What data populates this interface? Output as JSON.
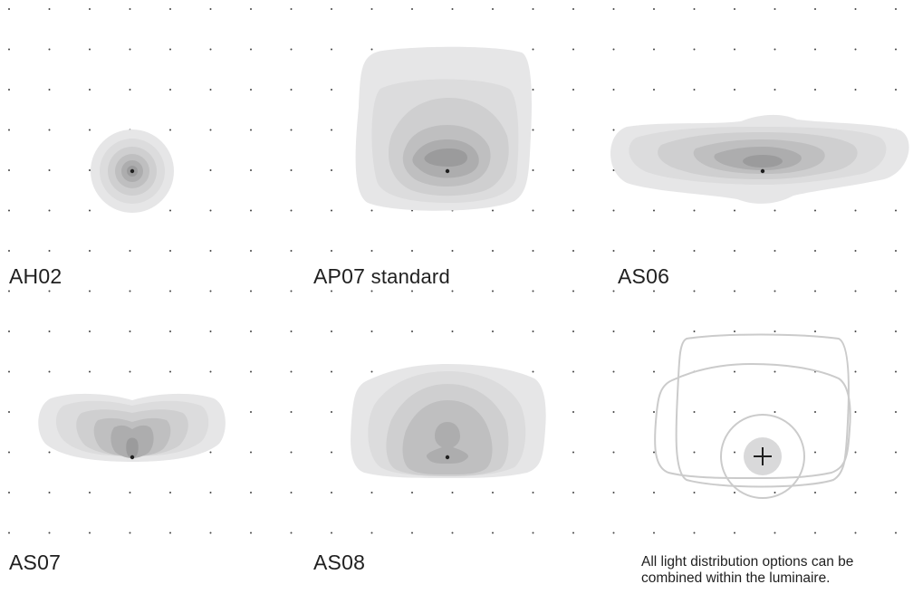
{
  "panels": [
    {
      "id": "ah02",
      "code": "AH02",
      "suffix": ""
    },
    {
      "id": "ap07",
      "code": "AP07",
      "suffix": "standard"
    },
    {
      "id": "as06",
      "code": "AS06",
      "suffix": ""
    },
    {
      "id": "as07",
      "code": "AS07",
      "suffix": ""
    },
    {
      "id": "as08",
      "code": "AS08",
      "suffix": ""
    }
  ],
  "combined_note": "All light distribution options can be combined within the luminaire.",
  "colors": {
    "shade_1": "#e6e6e7",
    "shade_2": "#dcdcdd",
    "shade_3": "#cfcfd0",
    "shade_4": "#bfbfc0",
    "shade_5": "#adadae",
    "shade_6": "#9b9b9c",
    "outline": "#cbcbcb",
    "dot": "#1f1f1f",
    "text": "#1f1f1f"
  },
  "icons": [
    "center-point-icon",
    "plus-icon"
  ]
}
